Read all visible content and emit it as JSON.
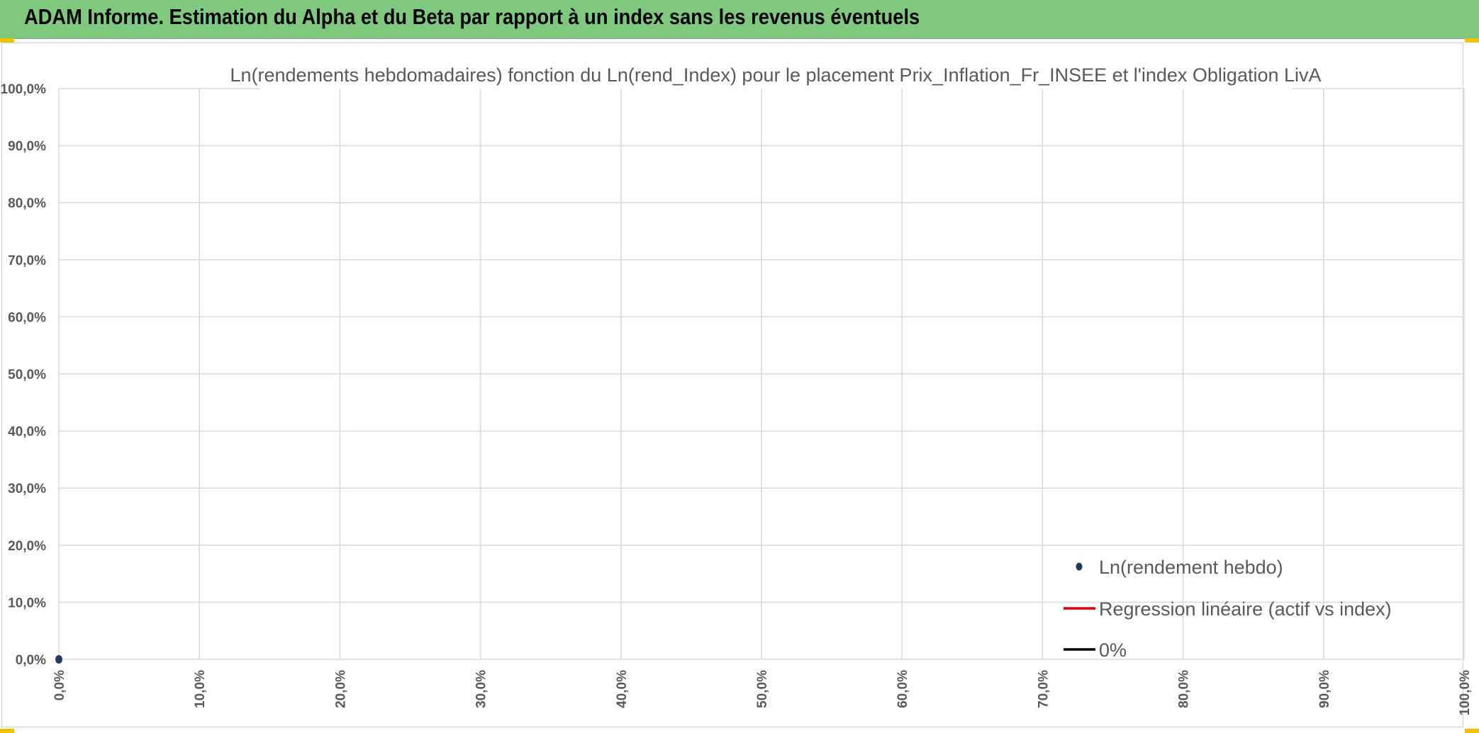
{
  "banner": {
    "title": "ADAM Informe. Estimation du Alpha et du Beta par rapport à un index sans les revenus éventuels"
  },
  "colors": {
    "banner": "#7fc97f",
    "series_point": "#1f3864",
    "regression": "#e00000",
    "zero_line": "#000000"
  },
  "chart_data": {
    "type": "scatter",
    "title": "Ln(rendements hebdomadaires) fonction du Ln(rend_Index) pour le placement Prix_Inflation_Fr_INSEE et l'index Obligation LivA",
    "xlabel": "",
    "ylabel": "",
    "xlim": [
      0,
      1
    ],
    "ylim": [
      0,
      1
    ],
    "x_ticks": [
      "0,0%",
      "10,0%",
      "20,0%",
      "30,0%",
      "40,0%",
      "50,0%",
      "60,0%",
      "70,0%",
      "80,0%",
      "90,0%",
      "100,0%"
    ],
    "y_ticks": [
      "0,0%",
      "10,0%",
      "20,0%",
      "30,0%",
      "40,0%",
      "50,0%",
      "60,0%",
      "70,0%",
      "80,0%",
      "90,0%",
      "100,0%"
    ],
    "grid": true,
    "legend_position": "bottom-right",
    "series": [
      {
        "name": "Ln(rendement hebdo)",
        "kind": "points",
        "points": [
          [
            0,
            0
          ]
        ]
      },
      {
        "name": "Regression linéaire (actif vs index)",
        "kind": "line",
        "points": []
      },
      {
        "name": "0%",
        "kind": "line",
        "points": []
      }
    ]
  }
}
